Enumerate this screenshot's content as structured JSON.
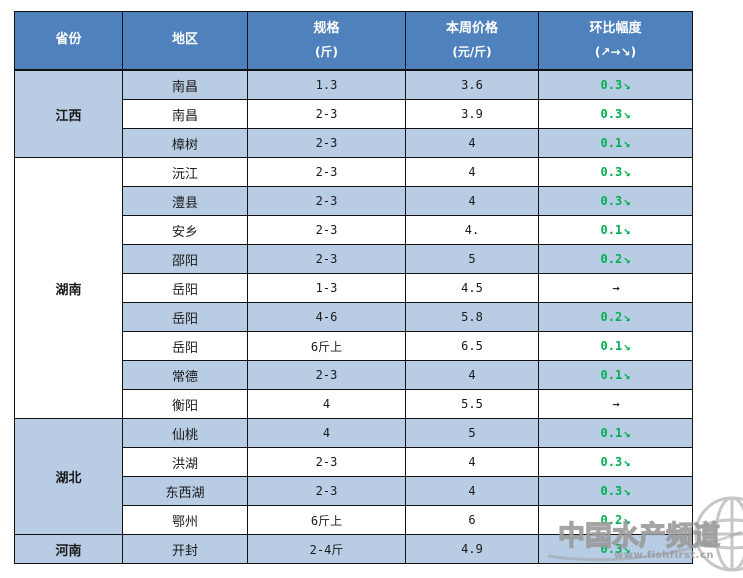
{
  "table": {
    "headers": {
      "province": "省份",
      "region": "地区",
      "spec_line1": "规格",
      "spec_line2": "(斤)",
      "price_line1": "本周价格",
      "price_line2": "(元/斤)",
      "change_line1": "环比幅度",
      "change_line2": "(↗→↘)"
    },
    "provinces": [
      {
        "name": "江西",
        "rows": [
          {
            "region": "南昌",
            "spec": "1.3",
            "price": "3.6",
            "change": "0.3",
            "arrow": "↘",
            "direction": "down"
          },
          {
            "region": "南昌",
            "spec": "2-3",
            "price": "3.9",
            "change": "0.3",
            "arrow": "↘",
            "direction": "down"
          },
          {
            "region": "樟树",
            "spec": "2-3",
            "price": "4",
            "change": "0.1",
            "arrow": "↘",
            "direction": "down"
          }
        ]
      },
      {
        "name": "湖南",
        "rows": [
          {
            "region": "沅江",
            "spec": "2-3",
            "price": "4",
            "change": "0.3",
            "arrow": "↘",
            "direction": "down"
          },
          {
            "region": "澧县",
            "spec": "2-3",
            "price": "4",
            "change": "0.3",
            "arrow": "↘",
            "direction": "down"
          },
          {
            "region": "安乡",
            "spec": "2-3",
            "price": "4.",
            "change": "0.1",
            "arrow": "↘",
            "direction": "down"
          },
          {
            "region": "邵阳",
            "spec": "2-3",
            "price": "5",
            "change": "0.2",
            "arrow": "↘",
            "direction": "down"
          },
          {
            "region": "岳阳",
            "spec": "1-3",
            "price": "4.5",
            "change": "",
            "arrow": "→",
            "direction": "flat"
          },
          {
            "region": "岳阳",
            "spec": "4-6",
            "price": "5.8",
            "change": "0.2",
            "arrow": "↘",
            "direction": "down"
          },
          {
            "region": "岳阳",
            "spec": "6斤上",
            "price": "6.5",
            "change": "0.1",
            "arrow": "↘",
            "direction": "down"
          },
          {
            "region": "常德",
            "spec": "2-3",
            "price": "4",
            "change": "0.1",
            "arrow": "↘",
            "direction": "down"
          },
          {
            "region": "衡阳",
            "spec": "4",
            "price": "5.5",
            "change": "",
            "arrow": "→",
            "direction": "flat"
          }
        ]
      },
      {
        "name": "湖北",
        "rows": [
          {
            "region": "仙桃",
            "spec": "4",
            "price": "5",
            "change": "0.1",
            "arrow": "↘",
            "direction": "down"
          },
          {
            "region": "洪湖",
            "spec": "2-3",
            "price": "4",
            "change": "0.3",
            "arrow": "↘",
            "direction": "down"
          },
          {
            "region": "东西湖",
            "spec": "2-3",
            "price": "4",
            "change": "0.3",
            "arrow": "↘",
            "direction": "down"
          },
          {
            "region": "鄂州",
            "spec": "6斤上",
            "price": "6",
            "change": "0.2",
            "arrow": "↘",
            "direction": "down"
          }
        ]
      },
      {
        "name": "河南",
        "rows": [
          {
            "region": "开封",
            "spec": "2-4斤",
            "price": "4.9",
            "change": "0.3",
            "arrow": "↘",
            "direction": "down"
          }
        ]
      }
    ]
  },
  "watermark": {
    "title": "中国水产频道",
    "url": "www.fishfirst.cn"
  },
  "colors": {
    "header_bg": "#4f81bd",
    "header_text": "#ffffff",
    "stripe_bg": "#b8cce4",
    "down_green": "#00b050",
    "flat_black": "#000000",
    "border": "#111111",
    "watermark_gray": "#9a9a9a"
  }
}
